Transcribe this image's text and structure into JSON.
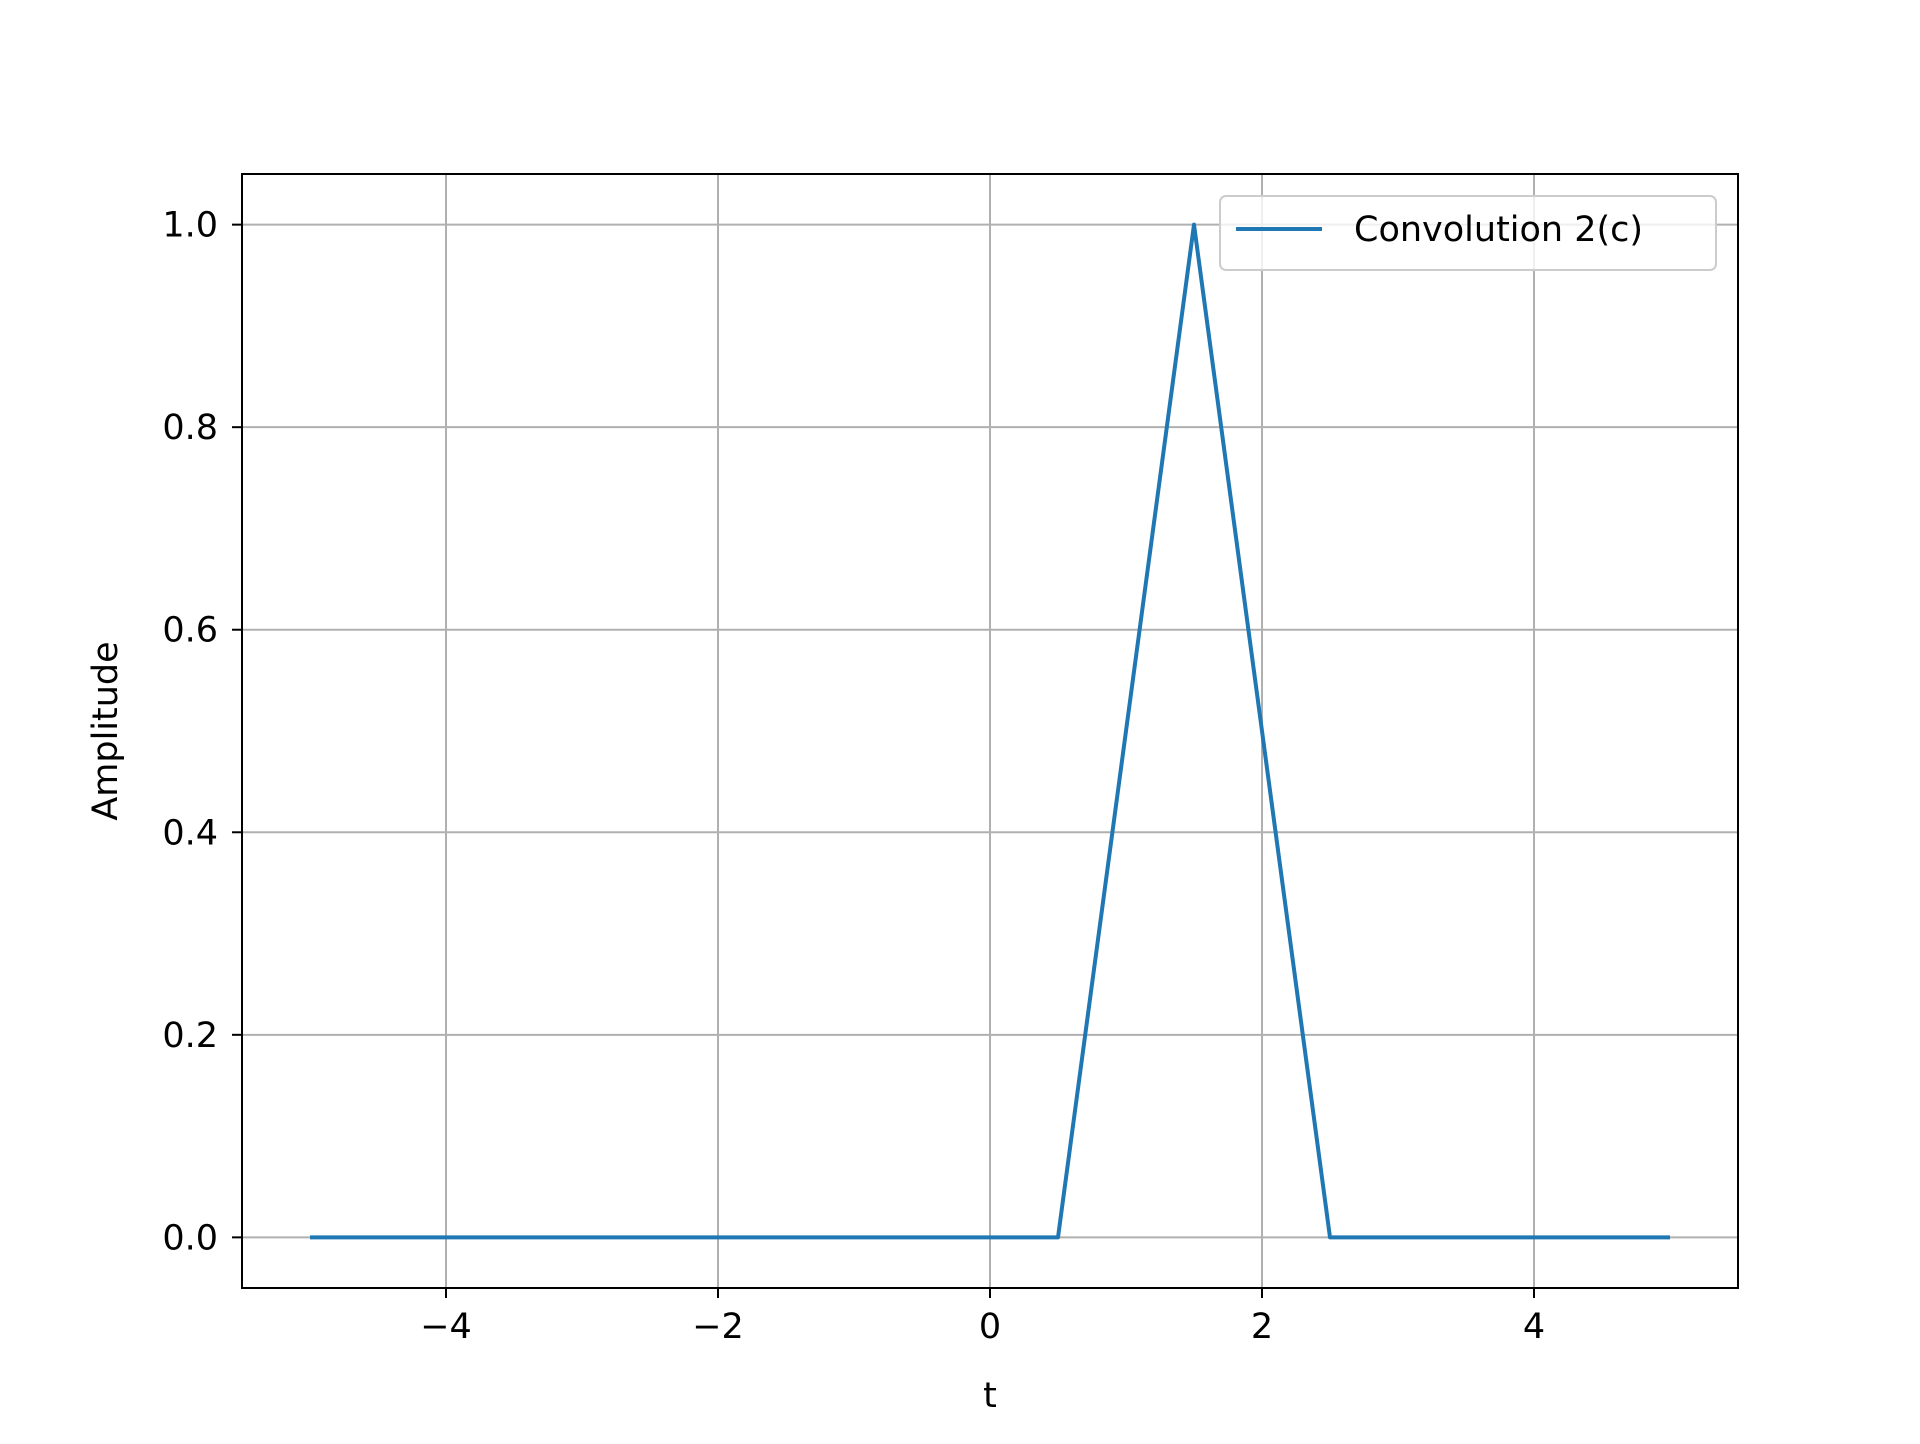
{
  "chart_data": {
    "type": "line",
    "title": "",
    "xlabel": "t",
    "ylabel": "Amplitude",
    "xlim": [
      -5.5,
      5.5
    ],
    "ylim": [
      -0.05,
      1.05
    ],
    "xticks": [
      -4,
      -2,
      0,
      2,
      4
    ],
    "xtick_labels": [
      "−4",
      "−2",
      "0",
      "2",
      "4"
    ],
    "yticks": [
      0.0,
      0.2,
      0.4,
      0.6,
      0.8,
      1.0
    ],
    "ytick_labels": [
      "0.0",
      "0.2",
      "0.4",
      "0.6",
      "0.8",
      "1.0"
    ],
    "grid": true,
    "legend_position": "top-right",
    "series": [
      {
        "name": "Convolution 2(c)",
        "color": "#1f77b4",
        "x": [
          -5.0,
          0.5,
          1.5,
          2.5,
          5.0
        ],
        "y": [
          0.0,
          0.0,
          1.0,
          0.0,
          0.0
        ]
      }
    ]
  }
}
